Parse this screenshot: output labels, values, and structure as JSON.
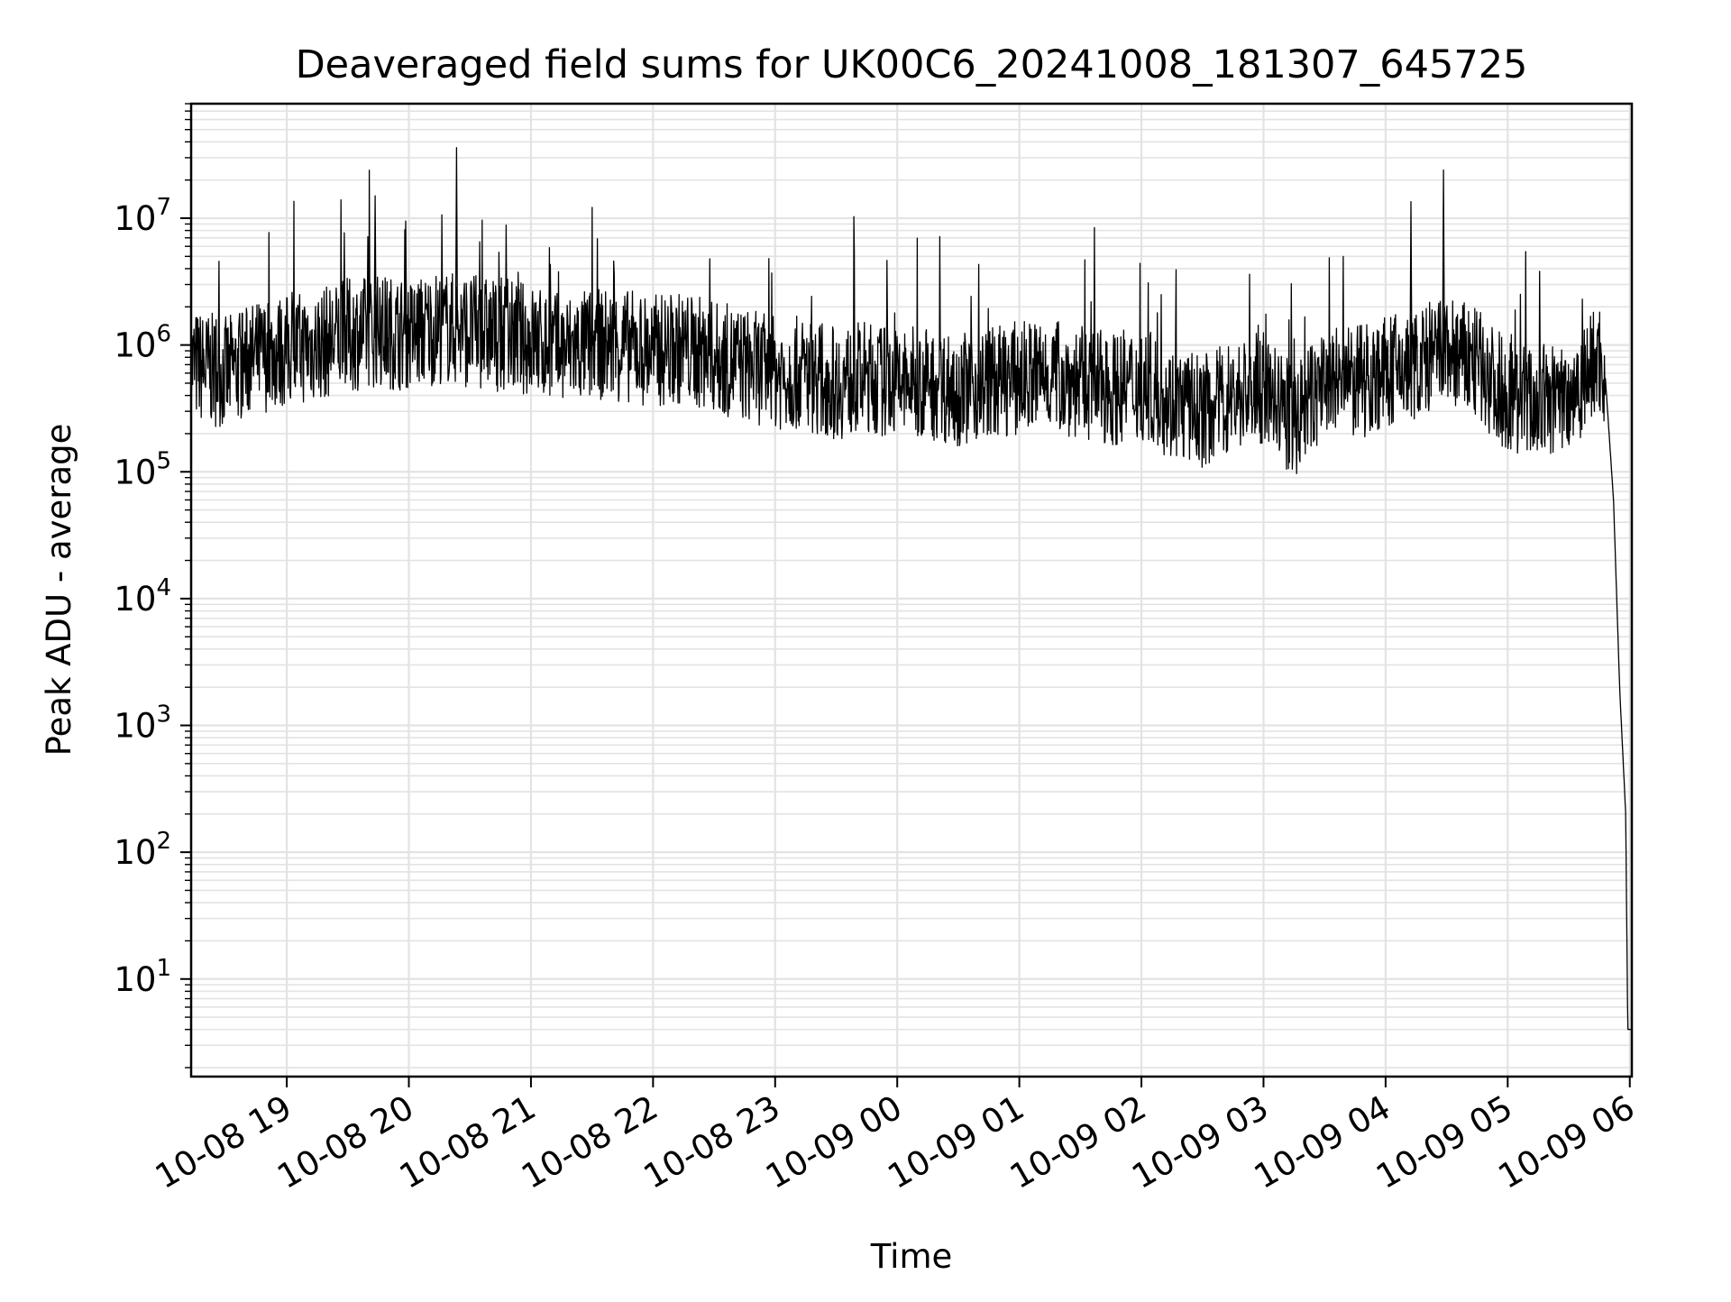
{
  "chart_data": {
    "type": "line",
    "title": "Deaveraged field sums for UK00C6_20241008_181307_645725",
    "xlabel": "Time",
    "ylabel": "Peak ADU - average",
    "yscale": "log",
    "xlim": [
      "2024-10-08 18:13",
      "2024-10-09 06:01"
    ],
    "ylim": [
      1.7,
      80000000
    ],
    "grid": true,
    "line_color": "#000000",
    "grid_color": "#e3e3e3",
    "x_ticks": [
      "10-08 19",
      "10-08 20",
      "10-08 21",
      "10-08 22",
      "10-08 23",
      "10-09 00",
      "10-09 01",
      "10-09 02",
      "10-09 03",
      "10-09 04",
      "10-09 05",
      "10-09 06"
    ],
    "y_ticks": [
      {
        "base": "10",
        "exp": "1"
      },
      {
        "base": "10",
        "exp": "2"
      },
      {
        "base": "10",
        "exp": "3"
      },
      {
        "base": "10",
        "exp": "4"
      },
      {
        "base": "10",
        "exp": "5"
      },
      {
        "base": "10",
        "exp": "6"
      },
      {
        "base": "10",
        "exp": "7"
      }
    ],
    "series": [
      {
        "x": [
          "2024-10-08 18:13",
          "2024-10-08 18:30",
          "2024-10-08 18:45",
          "2024-10-08 19:00",
          "2024-10-08 19:15",
          "2024-10-08 19:30",
          "2024-10-08 19:45",
          "2024-10-08 20:00",
          "2024-10-08 20:15",
          "2024-10-08 20:30",
          "2024-10-08 20:45",
          "2024-10-08 21:00",
          "2024-10-08 21:15",
          "2024-10-08 21:30",
          "2024-10-08 21:45",
          "2024-10-08 22:00",
          "2024-10-08 22:15",
          "2024-10-08 22:30",
          "2024-10-08 22:45",
          "2024-10-08 23:00",
          "2024-10-08 23:15",
          "2024-10-08 23:30",
          "2024-10-08 23:45",
          "2024-10-09 00:00",
          "2024-10-09 00:15",
          "2024-10-09 00:30",
          "2024-10-09 00:45",
          "2024-10-09 01:00",
          "2024-10-09 01:15",
          "2024-10-09 01:30",
          "2024-10-09 01:45",
          "2024-10-09 02:00",
          "2024-10-09 02:15",
          "2024-10-09 02:30",
          "2024-10-09 02:45",
          "2024-10-09 03:00",
          "2024-10-09 03:15",
          "2024-10-09 03:30",
          "2024-10-09 03:45",
          "2024-10-09 04:00",
          "2024-10-09 04:15",
          "2024-10-09 04:30",
          "2024-10-09 04:45",
          "2024-10-09 05:00",
          "2024-10-09 05:15",
          "2024-10-09 05:30",
          "2024-10-09 05:45",
          "2024-10-09 05:48",
          "2024-10-09 05:52",
          "2024-10-09 05:55",
          "2024-10-09 05:58",
          "2024-10-09 05:59",
          "2024-10-09 06:01"
        ],
        "values": [
          700000,
          600000,
          800000,
          900000,
          1000000,
          1200000,
          1300000,
          1200000,
          1400000,
          1300000,
          1200000,
          1100000,
          900000,
          1000000,
          1000000,
          900000,
          950000,
          800000,
          700000,
          600000,
          600000,
          500000,
          550000,
          500000,
          500000,
          450000,
          500000,
          550000,
          600000,
          500000,
          450000,
          500000,
          350000,
          300000,
          400000,
          450000,
          250000,
          500000,
          500000,
          600000,
          700000,
          900000,
          700000,
          400000,
          350000,
          400000,
          800000,
          550000,
          60000,
          2000,
          200,
          4,
          4
        ]
      }
    ]
  }
}
